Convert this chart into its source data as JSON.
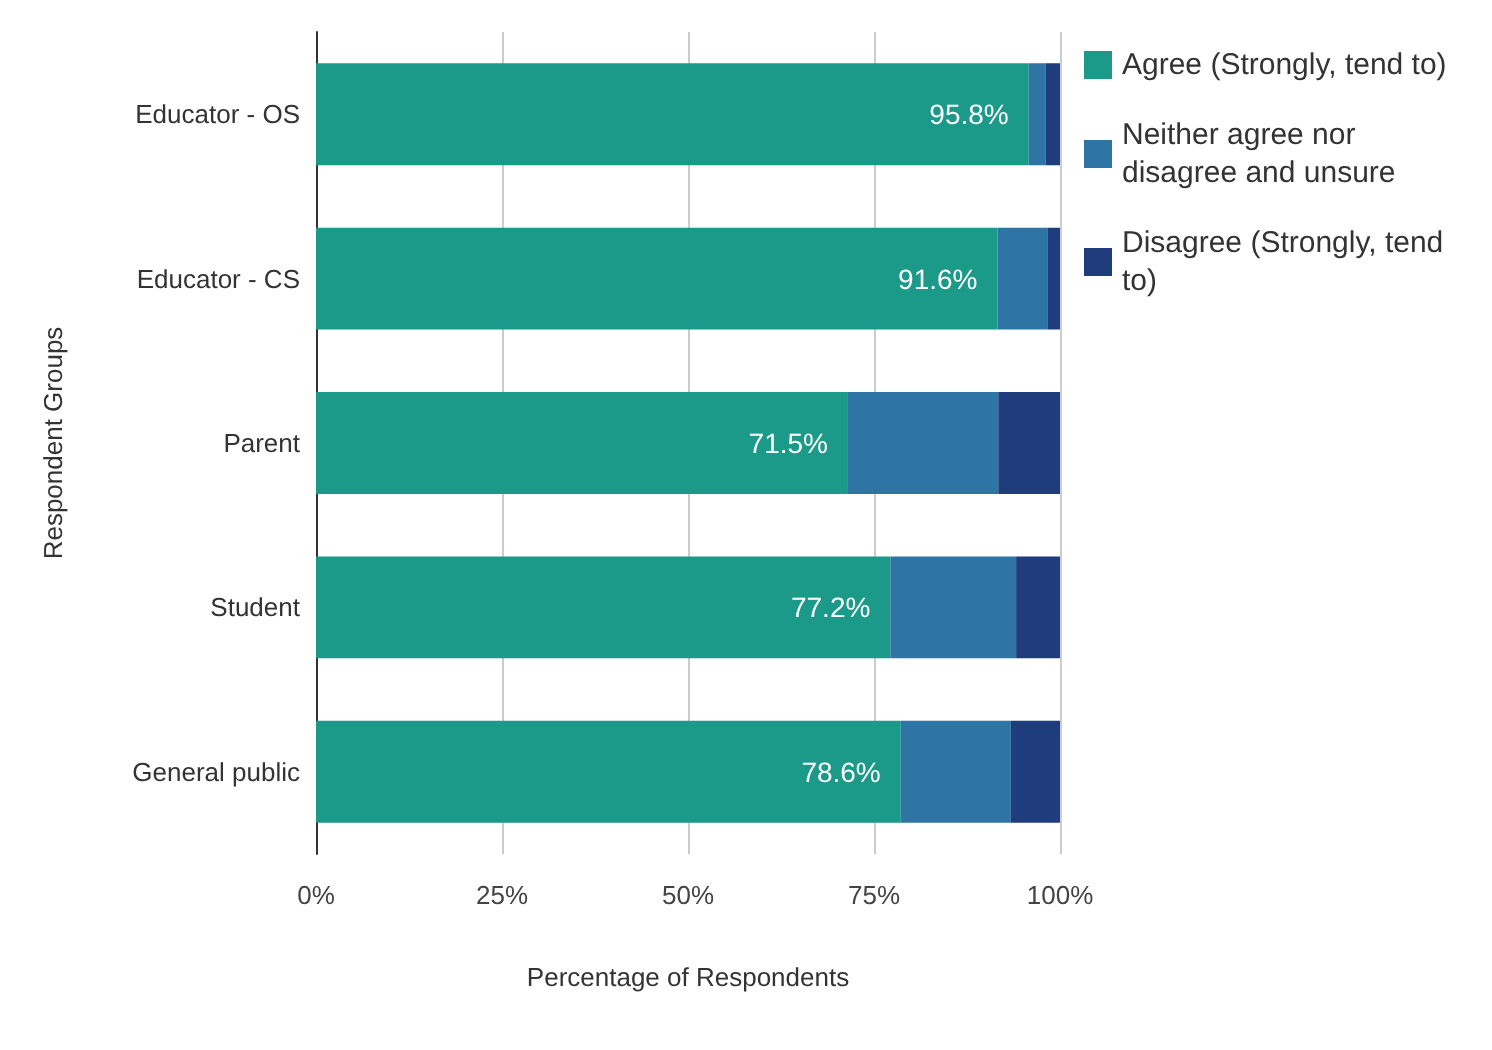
{
  "chart_data": {
    "type": "bar",
    "orientation": "horizontal",
    "stacked": true,
    "xlabel": "Percentage of Respondents",
    "ylabel": "Respondent Groups",
    "categories": [
      "Educator - OS",
      "Educator - CS",
      "Parent",
      "Student",
      "General public"
    ],
    "series": [
      {
        "name": "Agree (Strongly, tend to)",
        "color": "#1b9a89",
        "values": [
          95.8,
          91.6,
          71.5,
          77.2,
          78.6
        ],
        "value_labels": [
          "95.8%",
          "91.6%",
          "71.5%",
          "77.2%",
          "78.6%"
        ]
      },
      {
        "name": "Neither agree nor disagree and unsure",
        "color": "#2e74a5",
        "values": [
          2.3,
          6.7,
          20.2,
          16.9,
          14.8
        ]
      },
      {
        "name": "Disagree (Strongly, tend to)",
        "color": "#1f3d7d",
        "values": [
          1.9,
          1.7,
          8.3,
          5.9,
          6.6
        ]
      }
    ],
    "xlim": [
      0,
      100
    ],
    "xticks": [
      {
        "value": 0,
        "label": "0%"
      },
      {
        "value": 25,
        "label": "25%"
      },
      {
        "value": 50,
        "label": "50%"
      },
      {
        "value": 75,
        "label": "75%"
      },
      {
        "value": 100,
        "label": "100%"
      }
    ],
    "grid": "x",
    "legend": "right"
  }
}
